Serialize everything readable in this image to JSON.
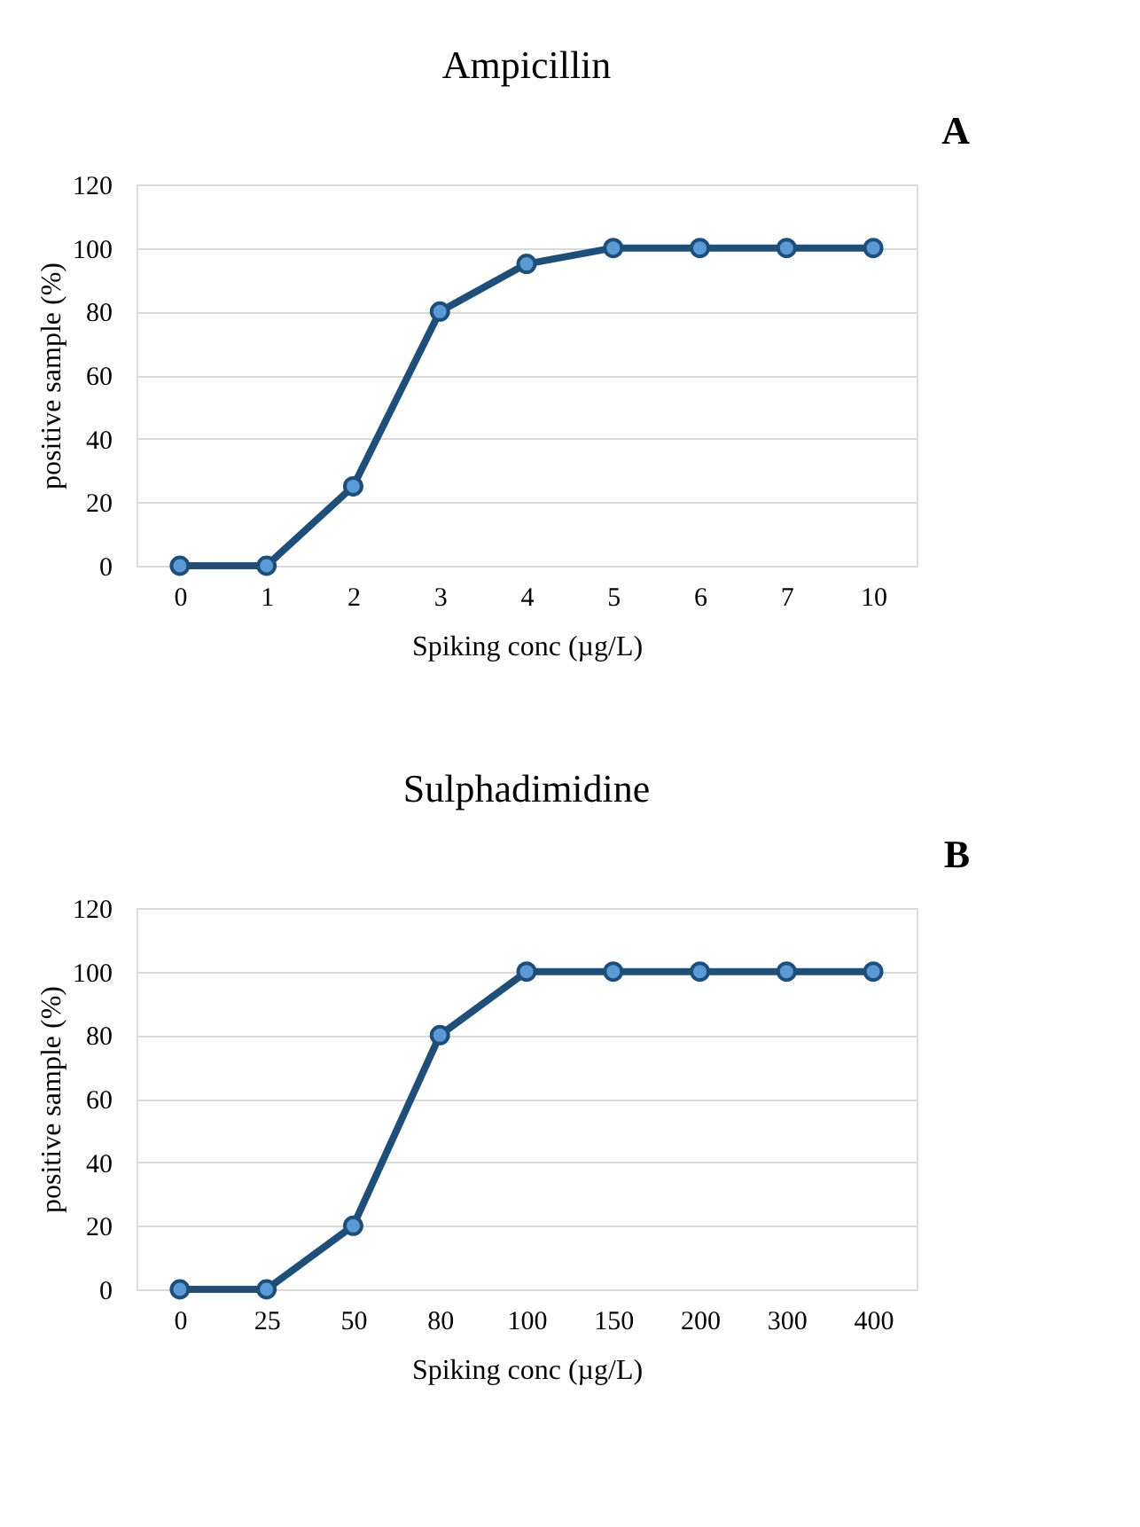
{
  "chart_data": [
    {
      "type": "line",
      "title": "Ampicillin",
      "annotations": [
        "A"
      ],
      "xlabel": "Spiking conc (µg/L)",
      "ylabel": "positive sample (%)",
      "categories": [
        "0",
        "1",
        "2",
        "3",
        "4",
        "5",
        "6",
        "7",
        "10"
      ],
      "series": [
        {
          "color": "#1f4e79",
          "values": [
            0,
            0,
            25,
            80,
            95,
            100,
            100,
            100,
            100
          ]
        }
      ],
      "ylim": [
        0,
        120
      ],
      "yticks": [
        0,
        20,
        40,
        60,
        80,
        100,
        120
      ],
      "grid": "y",
      "marker": "circle",
      "line_style": "solid"
    },
    {
      "type": "line",
      "title": "Sulphadimidine",
      "annotations": [
        "B"
      ],
      "xlabel": "Spiking conc (µg/L)",
      "ylabel": "positive sample (%)",
      "categories": [
        "0",
        "25",
        "50",
        "80",
        "100",
        "150",
        "200",
        "300",
        "400"
      ],
      "series": [
        {
          "color": "#1f4e79",
          "values": [
            0,
            0,
            20,
            80,
            100,
            100,
            100,
            100,
            100
          ]
        }
      ],
      "ylim": [
        0,
        120
      ],
      "yticks": [
        0,
        20,
        40,
        60,
        80,
        100,
        120
      ],
      "grid": "y",
      "marker": "circle",
      "line_style": "solid"
    }
  ]
}
